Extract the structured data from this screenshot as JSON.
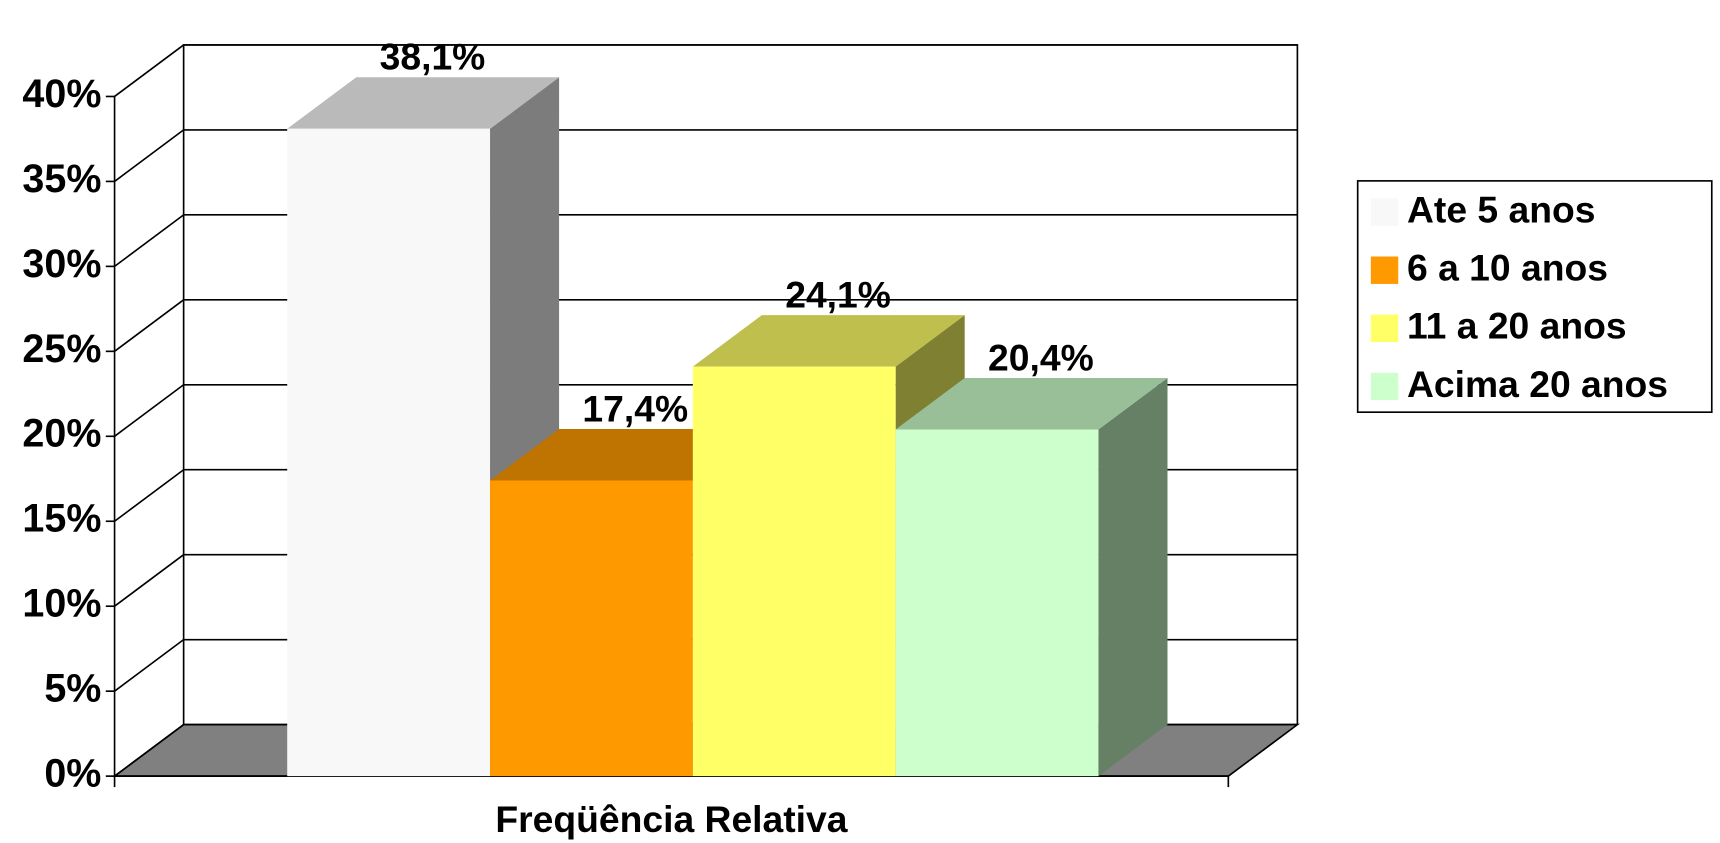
{
  "chart_data": {
    "type": "bar3d",
    "categories": [
      "Freqüência Relativa"
    ],
    "series": [
      {
        "name": "Ate 5 anos",
        "color": "#f8f8f8",
        "values": [
          38.1
        ],
        "value_labels": [
          "38,1%"
        ]
      },
      {
        "name": "6 a 10 anos",
        "color": "#ff9900",
        "values": [
          17.4
        ],
        "value_labels": [
          "17,4%"
        ]
      },
      {
        "name": "11 a 20 anos",
        "color": "#ffff66",
        "values": [
          24.1
        ],
        "value_labels": [
          "24,1%"
        ]
      },
      {
        "name": "Acima 20 anos",
        "color": "#ccffcc",
        "values": [
          20.4
        ],
        "value_labels": [
          "20,4%"
        ]
      }
    ],
    "ylim": [
      0,
      40
    ],
    "yticks": [
      {
        "value": 0,
        "label": "0%"
      },
      {
        "value": 5,
        "label": "5%"
      },
      {
        "value": 10,
        "label": "10%"
      },
      {
        "value": 15,
        "label": "15%"
      },
      {
        "value": 20,
        "label": "20%"
      },
      {
        "value": 25,
        "label": "25%"
      },
      {
        "value": 30,
        "label": "30%"
      },
      {
        "value": 35,
        "label": "35%"
      },
      {
        "value": 40,
        "label": "40%"
      }
    ],
    "grid": true,
    "legend": "right",
    "floor_color": "#808080"
  }
}
